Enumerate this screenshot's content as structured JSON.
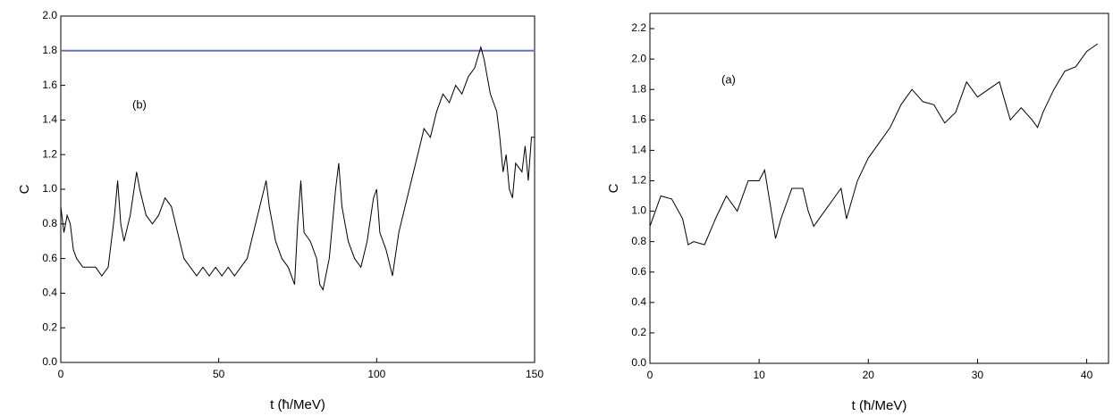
{
  "chart_data": [
    {
      "type": "line",
      "annotation": "(b)",
      "xlabel": "t (ħ/MeV)",
      "ylabel": "C",
      "xlim": [
        0,
        150
      ],
      "xticks": [
        0,
        50,
        100,
        150
      ],
      "ylim": [
        0,
        2
      ],
      "yticks": [
        {
          "value": 0,
          "label": "0.0"
        },
        0.2,
        0.4,
        0.6,
        0.8,
        {
          "value": 1,
          "label": "1.0"
        },
        1.2,
        1.4,
        1.6,
        1.8,
        {
          "value": 2,
          "label": "2.0"
        }
      ],
      "reference_line": {
        "value": 1.8,
        "color": "#6a74a8"
      },
      "x": [
        0,
        1,
        2,
        3,
        4,
        5,
        7,
        9,
        11,
        13,
        15,
        17,
        18,
        19,
        20,
        22,
        24,
        25,
        27,
        29,
        31,
        33,
        35,
        37,
        39,
        41,
        43,
        45,
        47,
        49,
        51,
        53,
        55,
        57,
        59,
        61,
        63,
        65,
        66,
        68,
        70,
        72,
        74,
        75,
        76,
        77,
        79,
        81,
        82,
        83,
        85,
        87,
        88,
        89,
        91,
        93,
        95,
        97,
        99,
        100,
        101,
        103,
        105,
        107,
        109,
        111,
        113,
        115,
        117,
        119,
        121,
        123,
        125,
        127,
        129,
        131,
        133,
        134,
        136,
        138,
        139,
        140,
        141,
        142,
        143,
        144,
        146,
        147,
        148,
        149,
        150
      ],
      "series": [
        {
          "color": "#000000",
          "values": [
            0.9,
            0.75,
            0.85,
            0.8,
            0.65,
            0.6,
            0.55,
            0.55,
            0.55,
            0.5,
            0.55,
            0.85,
            1.05,
            0.8,
            0.7,
            0.85,
            1.1,
            1.0,
            0.85,
            0.8,
            0.85,
            0.95,
            0.9,
            0.75,
            0.6,
            0.55,
            0.5,
            0.55,
            0.5,
            0.55,
            0.5,
            0.55,
            0.5,
            0.55,
            0.6,
            0.75,
            0.9,
            1.05,
            0.9,
            0.7,
            0.6,
            0.55,
            0.45,
            0.8,
            1.05,
            0.75,
            0.7,
            0.6,
            0.45,
            0.42,
            0.6,
            1.0,
            1.15,
            0.9,
            0.7,
            0.6,
            0.55,
            0.7,
            0.95,
            1.0,
            0.75,
            0.65,
            0.5,
            0.75,
            0.9,
            1.05,
            1.2,
            1.35,
            1.3,
            1.45,
            1.55,
            1.5,
            1.6,
            1.55,
            1.65,
            1.7,
            1.82,
            1.75,
            1.55,
            1.45,
            1.3,
            1.1,
            1.2,
            1.0,
            0.95,
            1.15,
            1.1,
            1.25,
            1.05,
            1.3,
            1.3
          ]
        }
      ]
    },
    {
      "type": "line",
      "annotation": "(a)",
      "xlabel": "t (ħ/MeV)",
      "ylabel": "C",
      "xlim": [
        0,
        42
      ],
      "xticks": [
        0,
        10,
        20,
        30,
        40
      ],
      "ylim": [
        0,
        2.3
      ],
      "yticks": [
        {
          "value": 0,
          "label": "0.0"
        },
        0.2,
        0.4,
        0.6,
        0.8,
        {
          "value": 1,
          "label": "1.0"
        },
        1.2,
        1.4,
        1.6,
        1.8,
        {
          "value": 2,
          "label": "2.0"
        },
        2.2
      ],
      "x": [
        0,
        1,
        2,
        3,
        3.5,
        4,
        5,
        6,
        7,
        8,
        9,
        10,
        10.5,
        11,
        11.5,
        12,
        13,
        14,
        14.5,
        15,
        16,
        17,
        17.5,
        18,
        19,
        20,
        21,
        22,
        23,
        24,
        25,
        26,
        27,
        28,
        29,
        30,
        31,
        32,
        33,
        34,
        35,
        35.5,
        36,
        37,
        38,
        39,
        40,
        41
      ],
      "series": [
        {
          "color": "#000000",
          "values": [
            0.9,
            1.1,
            1.08,
            0.95,
            0.78,
            0.8,
            0.78,
            0.95,
            1.1,
            1.0,
            1.2,
            1.2,
            1.27,
            1.05,
            0.82,
            0.95,
            1.15,
            1.15,
            1.0,
            0.9,
            1.0,
            1.1,
            1.15,
            0.95,
            1.2,
            1.35,
            1.45,
            1.55,
            1.7,
            1.8,
            1.72,
            1.7,
            1.58,
            1.65,
            1.85,
            1.75,
            1.8,
            1.85,
            1.6,
            1.68,
            1.6,
            1.55,
            1.65,
            1.8,
            1.92,
            1.95,
            2.05,
            2.1
          ]
        }
      ]
    }
  ]
}
